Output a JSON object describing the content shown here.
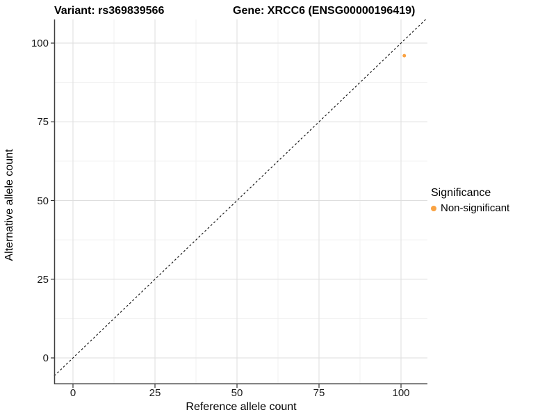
{
  "title": {
    "variant": "Variant: rs369839566",
    "gene": "Gene: XRCC6 (ENSG00000196419)"
  },
  "axes": {
    "x_label": "Reference allele count",
    "y_label": "Alternative allele count"
  },
  "legend": {
    "title": "Significance",
    "items": [
      {
        "label": "Non-significant",
        "color": "#F9A242"
      }
    ]
  },
  "chart_data": {
    "type": "scatter",
    "title": "Variant: rs369839566 — Gene: XRCC6 (ENSG00000196419)",
    "xlabel": "Reference allele count",
    "ylabel": "Alternative allele count",
    "series": [
      {
        "name": "Non-significant",
        "color": "#F9A242",
        "points": [
          {
            "x": 101,
            "y": 96
          }
        ]
      }
    ],
    "x_ticks": [
      0,
      25,
      50,
      75,
      100
    ],
    "y_ticks": [
      0,
      25,
      50,
      75,
      100
    ],
    "x_minor_ticks": [
      12.5,
      37.5,
      62.5,
      87.5
    ],
    "y_minor_ticks": [
      12.5,
      37.5,
      62.5,
      87.5
    ],
    "xlim": [
      -5.72,
      108.05
    ],
    "ylim": [
      -8.39,
      107.51
    ],
    "grid": true,
    "legend_position": "right",
    "reference_line": {
      "type": "identity-y-equals-x",
      "style": "dashed",
      "color": "#1a1a1a"
    },
    "colors": {
      "point": "#F9A242",
      "grid_major": "#DEDEDE",
      "grid_minor": "#F0F0F0",
      "axis_line": "#404040",
      "tick_mark": "#333333"
    }
  }
}
